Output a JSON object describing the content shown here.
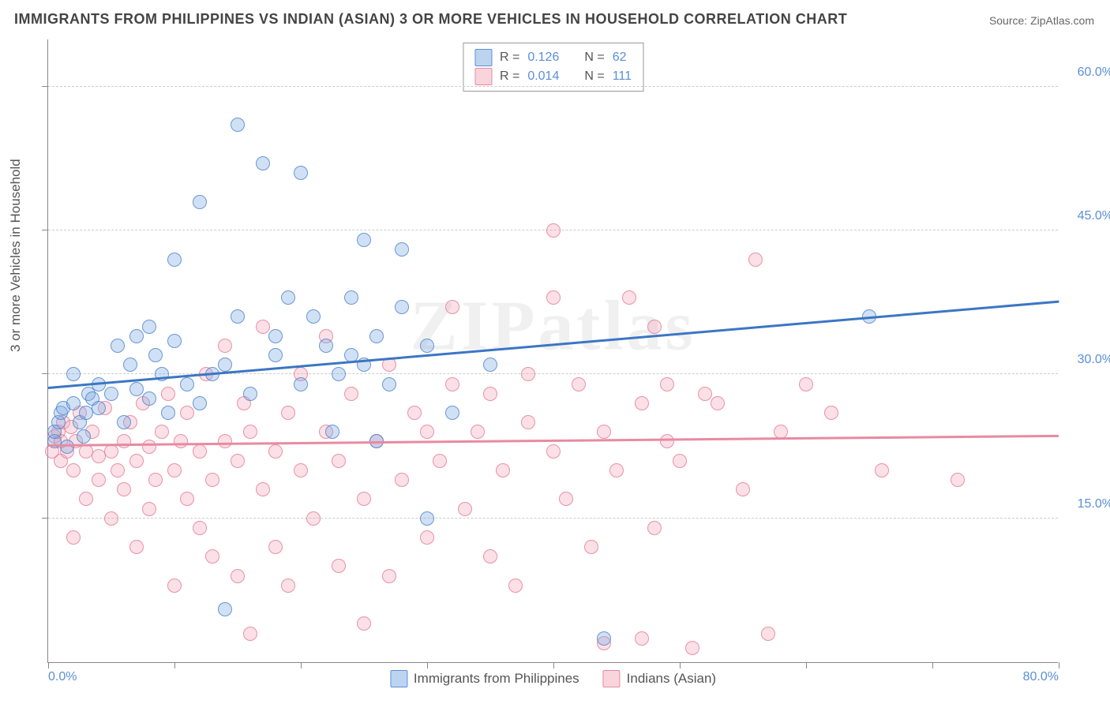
{
  "title": "IMMIGRANTS FROM PHILIPPINES VS INDIAN (ASIAN) 3 OR MORE VEHICLES IN HOUSEHOLD CORRELATION CHART",
  "source": "Source: ZipAtlas.com",
  "watermark": "ZIPatlas",
  "y_axis_label": "3 or more Vehicles in Household",
  "chart": {
    "type": "scatter",
    "background_color": "#ffffff",
    "grid_color": "#cccccc",
    "axis_color": "#888888",
    "xlim": [
      0,
      80
    ],
    "ylim": [
      0,
      65
    ],
    "x_ticks": [
      0,
      10,
      20,
      30,
      40,
      50,
      60,
      70,
      80
    ],
    "x_tick_labels": {
      "0": "0.0%",
      "80": "80.0%"
    },
    "y_gridlines": [
      15,
      30,
      45,
      60
    ],
    "y_tick_labels": {
      "15": "15.0%",
      "30": "30.0%",
      "45": "45.0%",
      "60": "60.0%"
    },
    "tick_label_color": "#5b8fd6",
    "tick_label_fontsize": 16,
    "marker_size": 18,
    "series": [
      {
        "name": "Immigrants from Philippines",
        "color_fill": "rgba(123,169,226,0.35)",
        "color_stroke": "rgba(70,125,200,0.75)",
        "r_value": "0.126",
        "n_value": "62",
        "trend": {
          "y_start": 28.5,
          "y_end": 37.5,
          "color": "#3b76c4"
        },
        "points": [
          [
            0.5,
            23
          ],
          [
            0.5,
            24
          ],
          [
            0.8,
            25
          ],
          [
            1,
            26
          ],
          [
            1.2,
            26.5
          ],
          [
            1.5,
            22.5
          ],
          [
            2,
            27
          ],
          [
            2,
            30
          ],
          [
            2.5,
            25
          ],
          [
            2.8,
            23.5
          ],
          [
            3,
            26
          ],
          [
            3.2,
            28
          ],
          [
            3.5,
            27.5
          ],
          [
            4,
            26.5
          ],
          [
            4,
            29
          ],
          [
            5,
            28
          ],
          [
            5.5,
            33
          ],
          [
            6,
            25
          ],
          [
            6.5,
            31
          ],
          [
            7,
            28.5
          ],
          [
            7,
            34
          ],
          [
            8,
            27.5
          ],
          [
            8,
            35
          ],
          [
            8.5,
            32
          ],
          [
            9,
            30
          ],
          [
            9.5,
            26
          ],
          [
            10,
            33.5
          ],
          [
            10,
            42
          ],
          [
            11,
            29
          ],
          [
            12,
            27
          ],
          [
            12,
            48
          ],
          [
            13,
            30
          ],
          [
            14,
            5.5
          ],
          [
            14,
            31
          ],
          [
            15,
            36
          ],
          [
            15,
            56
          ],
          [
            16,
            28
          ],
          [
            17,
            52
          ],
          [
            18,
            32
          ],
          [
            18,
            34
          ],
          [
            19,
            38
          ],
          [
            20,
            29
          ],
          [
            20,
            51
          ],
          [
            21,
            36
          ],
          [
            22,
            33
          ],
          [
            22.5,
            24
          ],
          [
            23,
            30
          ],
          [
            24,
            38
          ],
          [
            25,
            31
          ],
          [
            25,
            44
          ],
          [
            26,
            23
          ],
          [
            26,
            34
          ],
          [
            27,
            29
          ],
          [
            28,
            37
          ],
          [
            28,
            43
          ],
          [
            30,
            15
          ],
          [
            30,
            33
          ],
          [
            32,
            26
          ],
          [
            35,
            31
          ],
          [
            44,
            2.5
          ],
          [
            65,
            36
          ],
          [
            24,
            32
          ]
        ]
      },
      {
        "name": "Indians (Asian)",
        "color_fill": "rgba(243,169,186,0.35)",
        "color_stroke": "rgba(225,110,140,0.7)",
        "r_value": "0.014",
        "n_value": "111",
        "trend": {
          "y_start": 22.5,
          "y_end": 23.5,
          "color": "#e88aa2"
        },
        "points": [
          [
            0.3,
            22
          ],
          [
            0.5,
            23.5
          ],
          [
            0.8,
            24
          ],
          [
            1,
            21
          ],
          [
            1,
            23
          ],
          [
            1.2,
            25
          ],
          [
            1.5,
            22
          ],
          [
            1.8,
            24.5
          ],
          [
            2,
            13
          ],
          [
            2,
            20
          ],
          [
            2.2,
            23
          ],
          [
            2.5,
            26
          ],
          [
            3,
            17
          ],
          [
            3,
            22
          ],
          [
            3.5,
            24
          ],
          [
            4,
            19
          ],
          [
            4,
            21.5
          ],
          [
            4.5,
            26.5
          ],
          [
            5,
            15
          ],
          [
            5,
            22
          ],
          [
            5.5,
            20
          ],
          [
            6,
            18
          ],
          [
            6,
            23
          ],
          [
            6.5,
            25
          ],
          [
            7,
            12
          ],
          [
            7,
            21
          ],
          [
            7.5,
            27
          ],
          [
            8,
            16
          ],
          [
            8,
            22.5
          ],
          [
            8.5,
            19
          ],
          [
            9,
            24
          ],
          [
            9.5,
            28
          ],
          [
            10,
            8
          ],
          [
            10,
            20
          ],
          [
            10.5,
            23
          ],
          [
            11,
            17
          ],
          [
            11,
            26
          ],
          [
            12,
            14
          ],
          [
            12,
            22
          ],
          [
            12.5,
            30
          ],
          [
            13,
            11
          ],
          [
            13,
            19
          ],
          [
            14,
            23
          ],
          [
            14,
            33
          ],
          [
            15,
            9
          ],
          [
            15,
            21
          ],
          [
            15.5,
            27
          ],
          [
            16,
            24
          ],
          [
            16,
            3
          ],
          [
            17,
            18
          ],
          [
            17,
            35
          ],
          [
            18,
            12
          ],
          [
            18,
            22
          ],
          [
            19,
            26
          ],
          [
            19,
            8
          ],
          [
            20,
            20
          ],
          [
            20,
            30
          ],
          [
            21,
            15
          ],
          [
            22,
            24
          ],
          [
            22,
            34
          ],
          [
            23,
            10
          ],
          [
            23,
            21
          ],
          [
            24,
            28
          ],
          [
            25,
            17
          ],
          [
            25,
            4
          ],
          [
            26,
            23
          ],
          [
            27,
            31
          ],
          [
            27,
            9
          ],
          [
            28,
            19
          ],
          [
            29,
            26
          ],
          [
            30,
            13
          ],
          [
            30,
            24
          ],
          [
            31,
            21
          ],
          [
            32,
            29
          ],
          [
            32,
            37
          ],
          [
            33,
            16
          ],
          [
            34,
            24
          ],
          [
            35,
            11
          ],
          [
            35,
            28
          ],
          [
            36,
            20
          ],
          [
            37,
            8
          ],
          [
            38,
            25
          ],
          [
            38,
            30
          ],
          [
            40,
            22
          ],
          [
            40,
            45
          ],
          [
            41,
            17
          ],
          [
            42,
            29
          ],
          [
            43,
            12
          ],
          [
            44,
            2
          ],
          [
            44,
            24
          ],
          [
            45,
            20
          ],
          [
            46,
            38
          ],
          [
            47,
            27
          ],
          [
            47,
            2.5
          ],
          [
            48,
            14
          ],
          [
            49,
            23
          ],
          [
            49,
            29
          ],
          [
            50,
            21
          ],
          [
            51,
            1.5
          ],
          [
            52,
            28
          ],
          [
            53,
            27
          ],
          [
            55,
            18
          ],
          [
            56,
            42
          ],
          [
            57,
            3
          ],
          [
            58,
            24
          ],
          [
            60,
            29
          ],
          [
            62,
            26
          ],
          [
            66,
            20
          ],
          [
            72,
            19
          ],
          [
            48,
            35
          ],
          [
            40,
            38
          ]
        ]
      }
    ],
    "legend_top": {
      "rows": [
        {
          "swatch": "blue",
          "r_label": "R =",
          "r_val": "0.126",
          "n_label": "N =",
          "n_val": "62"
        },
        {
          "swatch": "pink",
          "r_label": "R =",
          "r_val": "0.014",
          "n_label": "N =",
          "n_val": "111"
        }
      ]
    },
    "legend_bottom": [
      {
        "swatch": "blue",
        "label": "Immigrants from Philippines"
      },
      {
        "swatch": "pink",
        "label": "Indians (Asian)"
      }
    ]
  }
}
